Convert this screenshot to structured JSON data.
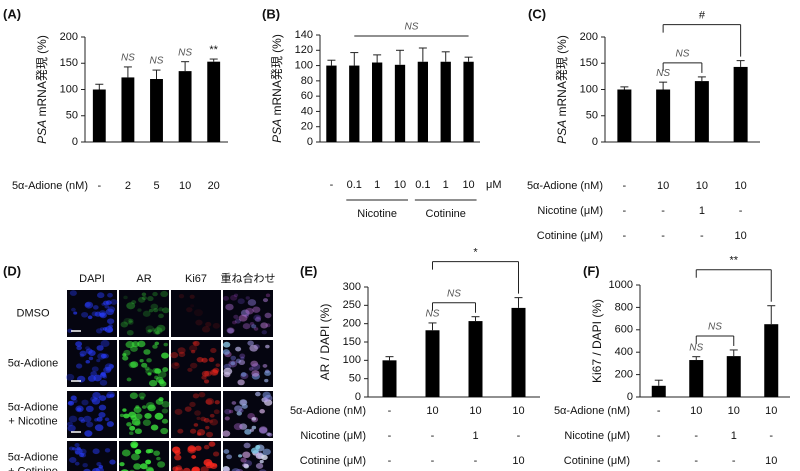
{
  "chart_data": [
    {
      "type": "bar",
      "panel": "(A)",
      "color": "#000000",
      "ylabel_parts": [
        {
          "text": "PSA",
          "italic": true
        },
        {
          "text": " mRNA発現 (%)"
        }
      ],
      "ylim": [
        0,
        200
      ],
      "yticks": [
        0,
        50,
        100,
        150,
        200
      ],
      "values": [
        100,
        123,
        120,
        135,
        153
      ],
      "errors": [
        10,
        20,
        17,
        18,
        5
      ],
      "annotations": [
        null,
        "NS",
        "NS",
        "NS",
        "**"
      ],
      "condition_rows": [
        {
          "label": "5α-Adione (nM)",
          "cells": [
            "-",
            "2",
            "5",
            "10",
            "20"
          ]
        }
      ]
    },
    {
      "type": "bar",
      "panel": "(B)",
      "color": "#000000",
      "ylabel_parts": [
        {
          "text": "PSA",
          "italic": true
        },
        {
          "text": " mRNA発現 (%)"
        }
      ],
      "ylim": [
        0,
        140
      ],
      "yticks": [
        0,
        20,
        40,
        60,
        80,
        100,
        120,
        140
      ],
      "values": [
        100,
        100,
        104,
        101,
        105,
        105,
        105
      ],
      "errors": [
        7,
        17,
        10,
        19,
        18,
        13,
        6
      ],
      "brackets": [
        {
          "from": 1,
          "to": 6,
          "label": "NS",
          "ticks": false
        }
      ],
      "condition_rows": [
        {
          "cells": [
            "-",
            "0.1",
            "1",
            "10",
            "0.1",
            "1",
            "10"
          ],
          "unit": "μM"
        }
      ],
      "groups": [
        {
          "label": "Nicotine",
          "span": [
            1,
            3
          ]
        },
        {
          "label": "Cotinine",
          "span": [
            4,
            6
          ]
        }
      ]
    },
    {
      "type": "bar",
      "panel": "(C)",
      "color": "#000000",
      "ylabel_parts": [
        {
          "text": "PSA",
          "italic": true
        },
        {
          "text": " mRNA発現 (%)"
        }
      ],
      "ylim": [
        0,
        200
      ],
      "yticks": [
        0,
        50,
        100,
        150,
        200
      ],
      "values": [
        100,
        100,
        116,
        143
      ],
      "errors": [
        5,
        14,
        8,
        12
      ],
      "annotations": [
        null,
        "NS",
        null,
        null
      ],
      "brackets": [
        {
          "from": 1,
          "to": 2,
          "label": "NS"
        },
        {
          "from": 1,
          "to": 3,
          "label": "#"
        }
      ],
      "condition_rows": [
        {
          "label": "5α-Adione (nM)",
          "cells": [
            "-",
            "10",
            "10",
            "10"
          ]
        },
        {
          "label": "Nicotine (μM)",
          "cells": [
            "-",
            "-",
            "1",
            "-"
          ]
        },
        {
          "label": "Cotinine (μM)",
          "cells": [
            "-",
            "-",
            "-",
            "10"
          ]
        }
      ]
    },
    {
      "type": "bar",
      "panel": "(E)",
      "color": "#000000",
      "ylabel_parts": [
        {
          "text": "AR / DAPI (%)"
        }
      ],
      "ylim": [
        0,
        300
      ],
      "yticks": [
        0,
        50,
        100,
        150,
        200,
        250,
        300
      ],
      "values": [
        100,
        182,
        207,
        243
      ],
      "errors": [
        10,
        20,
        12,
        28
      ],
      "annotations": [
        null,
        "NS",
        null,
        null
      ],
      "brackets": [
        {
          "from": 1,
          "to": 2,
          "label": "NS"
        },
        {
          "from": 1,
          "to": 3,
          "label": "*"
        }
      ],
      "condition_rows": [
        {
          "label": "5α-Adione (nM)",
          "cells": [
            "-",
            "10",
            "10",
            "10"
          ]
        },
        {
          "label": "Nicotine (μM)",
          "cells": [
            "-",
            "-",
            "1",
            "-"
          ]
        },
        {
          "label": "Cotinine (μM)",
          "cells": [
            "-",
            "-",
            "-",
            "10"
          ]
        }
      ]
    },
    {
      "type": "bar",
      "panel": "(F)",
      "color": "#000000",
      "ylabel_parts": [
        {
          "text": "Ki67 / DAPI (%)"
        }
      ],
      "ylim": [
        0,
        1000
      ],
      "yticks": [
        0,
        200,
        400,
        600,
        800,
        1000
      ],
      "values": [
        100,
        330,
        365,
        650
      ],
      "errors": [
        50,
        30,
        55,
        165
      ],
      "annotations": [
        null,
        "NS",
        null,
        null
      ],
      "brackets": [
        {
          "from": 1,
          "to": 2,
          "label": "NS"
        },
        {
          "from": 1,
          "to": 3,
          "label": "**"
        }
      ],
      "condition_rows": [
        {
          "label": "5α-Adione (nM)",
          "cells": [
            "-",
            "10",
            "10",
            "10"
          ]
        },
        {
          "label": "Nicotine (μM)",
          "cells": [
            "-",
            "-",
            "1",
            "-"
          ]
        },
        {
          "label": "Cotinine (μM)",
          "cells": [
            "-",
            "-",
            "-",
            "10"
          ]
        }
      ]
    }
  ],
  "image_panel": {
    "panel": "(D)",
    "columns": [
      "DAPI",
      "AR",
      "Ki67",
      "重ね合わせ"
    ],
    "rows": [
      [
        "DMSO"
      ],
      [
        "5α-Adione"
      ],
      [
        "5α-Adione",
        "+ Nicotine"
      ],
      [
        "5α-Adione",
        "+ Cotinine"
      ]
    ]
  }
}
